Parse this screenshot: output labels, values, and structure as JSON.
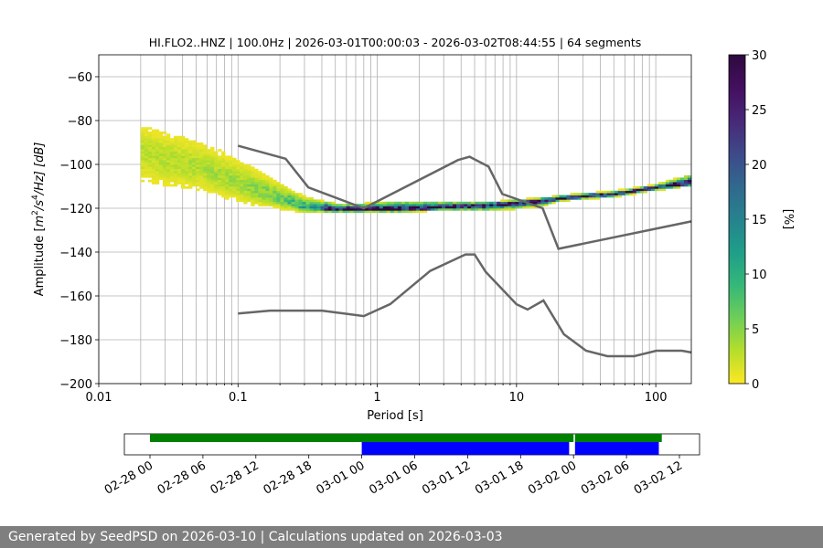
{
  "chart_data": [
    {
      "type": "heatmap",
      "title": "HI.FLO2..HNZ | 100.0Hz | 2026-03-01T00:00:03 - 2026-03-02T08:44:55 | 64 segments",
      "xlabel": "Period [s]",
      "ylabel": "Amplitude [m²/s⁴/Hz] [dB]",
      "ylabel_parts": {
        "prefix": "Amplitude [",
        "m": "m",
        "sup2": "2",
        "mid": "/s",
        "sup4": "4",
        "suffix": "/Hz] [dB]"
      },
      "x_scale": "log",
      "xlim": [
        0.01,
        180
      ],
      "ylim": [
        -200,
        -50
      ],
      "x_ticks": [
        0.01,
        0.1,
        1,
        10,
        100
      ],
      "x_tick_labels": [
        "0.01",
        "0.1",
        "1",
        "10",
        "100"
      ],
      "y_ticks": [
        -200,
        -180,
        -160,
        -140,
        -120,
        -100,
        -80,
        -60
      ],
      "y_tick_labels": [
        "−200",
        "−180",
        "−160",
        "−140",
        "−120",
        "−100",
        "−80",
        "−60"
      ],
      "grid": "vertical lines at log minor ticks, horizontal lines at major y ticks",
      "colormap": "viridis_r",
      "colorbar": {
        "label": "[%]",
        "range": [
          0,
          30
        ],
        "ticks": [
          0,
          5,
          10,
          15,
          20,
          25,
          30
        ],
        "tick_labels": [
          "0",
          "5",
          "10",
          "15",
          "20",
          "25",
          "30"
        ]
      },
      "psd_mode_curve": {
        "name": "mode",
        "x": [
          0.02,
          0.03,
          0.05,
          0.08,
          0.12,
          0.2,
          0.3,
          0.5,
          0.8,
          1.5,
          3,
          6,
          10,
          15,
          20,
          30,
          50,
          100,
          180
        ],
        "y": [
          -95,
          -98,
          -101,
          -106,
          -111,
          -116,
          -120,
          -121,
          -121,
          -121,
          -120,
          -119,
          -118,
          -117,
          -116,
          -115,
          -114,
          -111,
          -109
        ]
      },
      "psd_spread_top": [
        -83,
        -86,
        -90,
        -96,
        -102,
        -110,
        -116,
        -119,
        -119,
        -118,
        -118,
        -118,
        -117,
        -116,
        -115,
        -114,
        -113,
        -110,
        -106
      ],
      "psd_spread_bottom": [
        -108,
        -110,
        -112,
        -115,
        -118,
        -120,
        -122,
        -122,
        -122,
        -122,
        -121,
        -121,
        -120,
        -119,
        -117,
        -116,
        -115,
        -112,
        -110
      ],
      "noise_models": [
        {
          "name": "NHNM",
          "x": [
            0.1,
            0.22,
            0.32,
            0.8,
            3.8,
            4.6,
            6.3,
            7.9,
            15.4,
            20,
            354.8
          ],
          "y": [
            -91.5,
            -97.4,
            -110.5,
            -120,
            -98,
            -96.5,
            -101,
            -113.5,
            -120,
            -138.5,
            -126
          ]
        },
        {
          "name": "NLNM",
          "x": [
            0.1,
            0.17,
            0.4,
            0.8,
            1.24,
            2.4,
            4.3,
            5,
            6,
            10,
            12,
            15.6,
            21.9,
            31.6,
            45,
            70,
            101,
            154,
            180
          ],
          "y": [
            -168,
            -166.7,
            -166.7,
            -169.2,
            -163.7,
            -148.6,
            -141.1,
            -141.1,
            -149,
            -163.8,
            -166.2,
            -162.1,
            -177.5,
            -185,
            -187.5,
            -187.5,
            -185,
            -185,
            -185.8
          ]
        }
      ]
    },
    {
      "type": "gantt",
      "x_range": [
        "2026-02-28 00:00",
        "2026-03-02 12:00"
      ],
      "x_tick_labels": [
        "02-28 00",
        "02-28 06",
        "02-28 12",
        "02-28 18",
        "03-01 00",
        "03-01 06",
        "03-01 12",
        "03-01 18",
        "03-02 00",
        "03-02 06",
        "03-02 12"
      ],
      "rows": [
        {
          "color": "#008000",
          "segments": [
            [
              "2026-02-28 00:00",
              "2026-03-02 00:00"
            ],
            [
              "2026-03-02 00:10",
              "2026-03-02 10:00"
            ]
          ]
        },
        {
          "color": "#0000ff",
          "segments": [
            [
              "2026-03-01 00:00",
              "2026-03-01 23:30"
            ],
            [
              "2026-03-02 00:10",
              "2026-03-02 09:40"
            ]
          ]
        }
      ]
    }
  ],
  "footer": {
    "text": "Generated by SeedPSD on 2026-03-10 | Calculations updated on 2026-03-03"
  }
}
